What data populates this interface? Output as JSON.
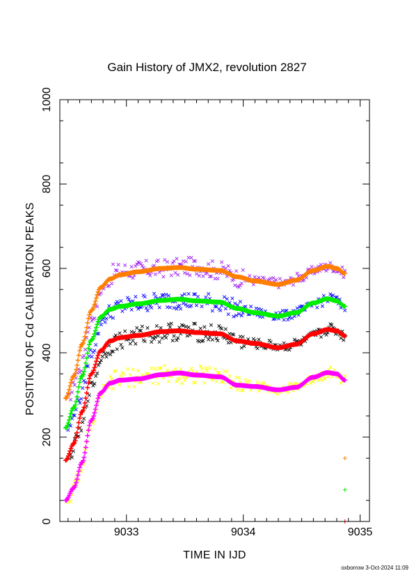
{
  "chart_data": {
    "type": "scatter",
    "title": "Gain History of JMX2, revolution 2827",
    "xlabel": "TIME IN IJD",
    "ylabel": "POSITION OF Cd CALIBRATION PEAKS",
    "xlim": [
      9032.43,
      9035.08
    ],
    "ylim": [
      0,
      1000
    ],
    "x_ticks": [
      9033,
      9034,
      9035
    ],
    "y_ticks": [
      0,
      200,
      400,
      600,
      800,
      1000
    ],
    "grid": false,
    "series": [
      {
        "marker": "x",
        "color": "#a020f0",
        "x": [
          9032.5,
          9032.6,
          9032.7,
          9032.8,
          9032.9,
          9033.0,
          9033.2,
          9033.4,
          9033.6,
          9033.8,
          9034.0,
          9034.2,
          9034.35,
          9034.5,
          9034.65,
          9034.75,
          9034.87
        ],
        "y": [
          290,
          360,
          480,
          555,
          590,
          595,
          598,
          602,
          605,
          595,
          575,
          568,
          565,
          580,
          600,
          605,
          590
        ]
      },
      {
        "marker": "fit",
        "color": "#ff7f00",
        "x": [
          9032.48,
          9032.55,
          9032.62,
          9032.7,
          9032.78,
          9032.86,
          9032.95,
          9033.1,
          9033.3,
          9033.45,
          9033.6,
          9033.8,
          9033.95,
          9034.1,
          9034.3,
          9034.45,
          9034.6,
          9034.72,
          9034.8,
          9034.87
        ],
        "y": [
          292,
          345,
          420,
          500,
          555,
          575,
          585,
          592,
          600,
          602,
          598,
          595,
          580,
          570,
          562,
          572,
          595,
          605,
          600,
          588
        ]
      },
      {
        "marker": "x",
        "color": "#0000ff",
        "x": [
          9032.5,
          9032.6,
          9032.7,
          9032.8,
          9032.9,
          9033.0,
          9033.2,
          9033.4,
          9033.6,
          9033.8,
          9034.0,
          9034.2,
          9034.35,
          9034.5,
          9034.65,
          9034.75,
          9034.87
        ],
        "y": [
          220,
          290,
          400,
          480,
          505,
          512,
          520,
          526,
          522,
          518,
          500,
          492,
          488,
          500,
          520,
          530,
          510
        ]
      },
      {
        "marker": "fit",
        "color": "#00ee00",
        "x": [
          9032.48,
          9032.55,
          9032.62,
          9032.7,
          9032.78,
          9032.86,
          9032.95,
          9033.1,
          9033.3,
          9033.45,
          9033.6,
          9033.8,
          9033.95,
          9034.1,
          9034.3,
          9034.45,
          9034.6,
          9034.72,
          9034.8,
          9034.87
        ],
        "y": [
          222,
          270,
          345,
          430,
          485,
          503,
          510,
          516,
          524,
          527,
          523,
          520,
          505,
          495,
          487,
          495,
          518,
          528,
          523,
          510
        ]
      },
      {
        "marker": "x",
        "color": "#000000",
        "x": [
          9032.5,
          9032.6,
          9032.7,
          9032.8,
          9032.9,
          9033.0,
          9033.2,
          9033.4,
          9033.6,
          9033.8,
          9034.0,
          9034.2,
          9034.35,
          9034.5,
          9034.65,
          9034.75,
          9034.87
        ],
        "y": [
          145,
          210,
          320,
          395,
          425,
          435,
          445,
          450,
          448,
          445,
          425,
          418,
          415,
          425,
          445,
          458,
          440
        ]
      },
      {
        "marker": "fit",
        "color": "#ff0000",
        "x": [
          9032.48,
          9032.55,
          9032.62,
          9032.7,
          9032.78,
          9032.86,
          9032.95,
          9033.1,
          9033.3,
          9033.45,
          9033.6,
          9033.8,
          9033.95,
          9034.1,
          9034.3,
          9034.45,
          9034.6,
          9034.72,
          9034.8,
          9034.87
        ],
        "y": [
          145,
          185,
          260,
          350,
          405,
          428,
          436,
          441,
          450,
          452,
          448,
          445,
          428,
          422,
          412,
          420,
          445,
          455,
          452,
          440
        ]
      },
      {
        "marker": "x",
        "color": "#ffff00",
        "x": [
          9032.5,
          9032.6,
          9032.7,
          9032.8,
          9032.9,
          9033.0,
          9033.2,
          9033.4,
          9033.6,
          9033.8,
          9034.0,
          9034.2,
          9034.35,
          9034.5,
          9034.65,
          9034.75,
          9034.87
        ],
        "y": [
          50,
          110,
          230,
          310,
          335,
          340,
          345,
          350,
          348,
          345,
          325,
          318,
          312,
          325,
          345,
          355,
          335
        ]
      },
      {
        "marker": "fit",
        "color": "#ff00ff",
        "x": [
          9032.48,
          9032.55,
          9032.62,
          9032.7,
          9032.78,
          9032.86,
          9032.95,
          9033.1,
          9033.3,
          9033.45,
          9033.6,
          9033.8,
          9033.95,
          9034.1,
          9034.3,
          9034.45,
          9034.6,
          9034.72,
          9034.8,
          9034.87
        ],
        "y": [
          50,
          80,
          140,
          240,
          305,
          328,
          335,
          338,
          348,
          352,
          347,
          343,
          323,
          320,
          312,
          318,
          342,
          353,
          350,
          335
        ]
      }
    ],
    "extra_points": [
      {
        "marker": "+",
        "color": "#ff7f00",
        "x": 9034.87,
        "y": 150
      },
      {
        "marker": "+",
        "color": "#00ee00",
        "x": 9034.87,
        "y": 75
      },
      {
        "marker": "+",
        "color": "#ff0000",
        "x": 9034.87,
        "y": 0
      }
    ]
  },
  "footer": "oxborrow  3-Oct-2024 11:09"
}
